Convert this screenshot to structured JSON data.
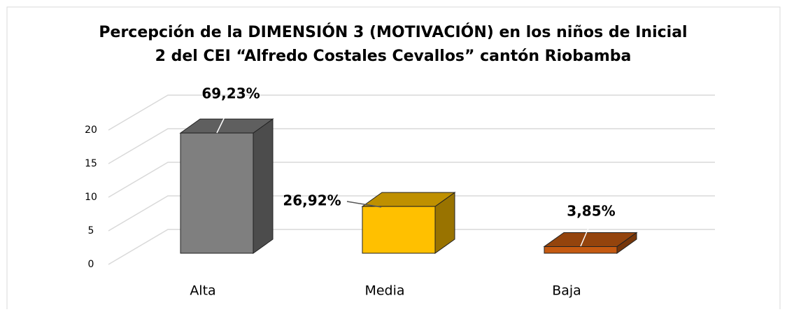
{
  "chart_data": {
    "type": "bar3d",
    "title": [
      "Percepción de la DIMENSIÓN 3 (MOTIVACIÓN) en los niños de Inicial",
      "2 del CEI “Alfredo Costales Cevallos” cantón Riobamba"
    ],
    "categories": [
      "Alta",
      "Media",
      "Baja"
    ],
    "values": [
      18,
      7,
      1
    ],
    "value_labels": [
      "69,23%",
      "26,92%",
      "3,85%"
    ],
    "colors": [
      "#7f7f7f",
      "#ffc000",
      "#c55a11"
    ],
    "ylim": [
      0,
      20
    ],
    "yticks": [
      0,
      5,
      10,
      15,
      20
    ],
    "grid": true
  }
}
